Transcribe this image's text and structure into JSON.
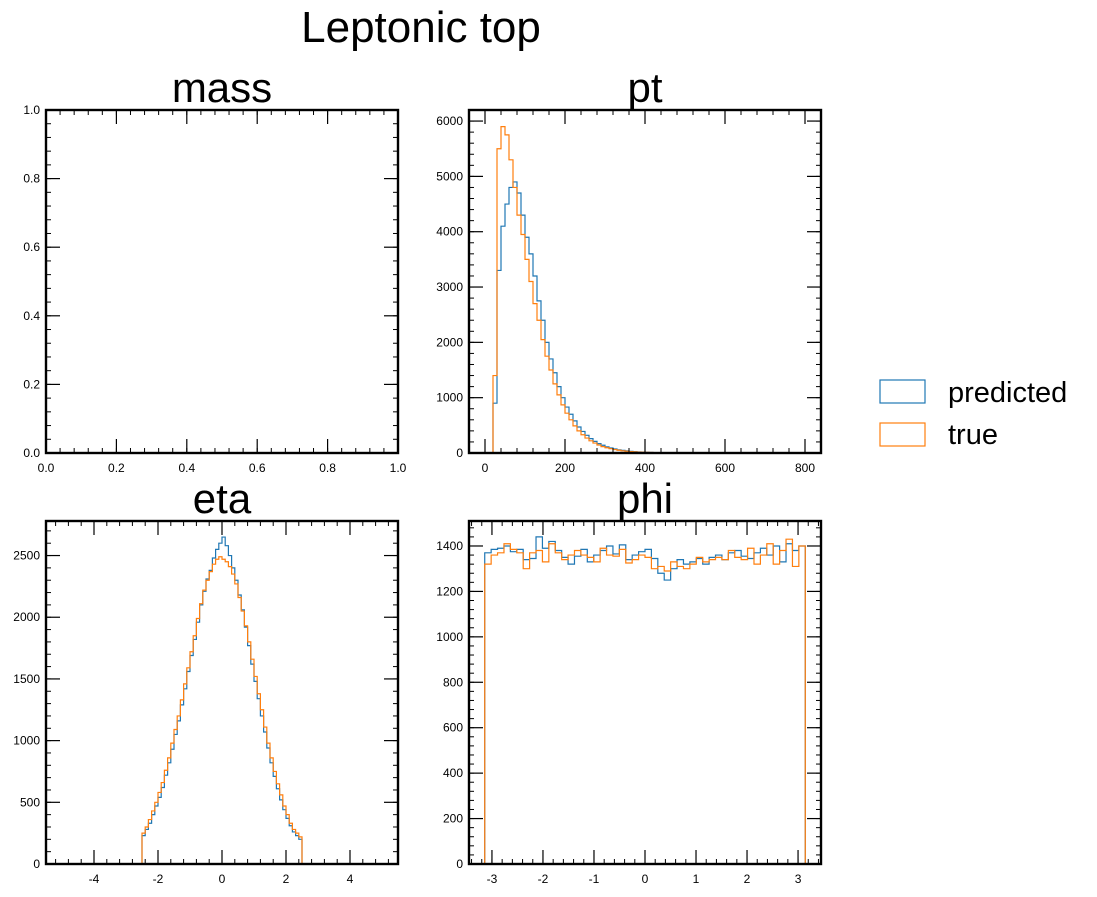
{
  "figure": {
    "title": "Leptonic top"
  },
  "legend": {
    "placement": "right",
    "entries": [
      {
        "label": "predicted",
        "color": "#1f77b4"
      },
      {
        "label": "true",
        "color": "#ff7f0e"
      }
    ]
  },
  "chart_data": [
    {
      "type": "histogram",
      "title": "mass",
      "xlabel": "",
      "ylabel": "",
      "xlim": [
        0,
        1
      ],
      "ylim": [
        0,
        1
      ],
      "xticks": [
        0,
        0.2,
        0.4,
        0.6,
        0.8,
        1
      ],
      "xtick_labels": [
        "0.0",
        "0.2",
        "0.4",
        "0.6",
        "0.8",
        "1.0"
      ],
      "yticks": [
        0,
        0.2,
        0.4,
        0.6,
        0.8,
        1
      ],
      "ytick_labels": [
        "0.0",
        "0.2",
        "0.4",
        "0.6",
        "0.8",
        "1.0"
      ],
      "bin_edges": [],
      "series": []
    },
    {
      "type": "histogram",
      "title": "pt",
      "xlabel": "",
      "ylabel": "",
      "xlim": [
        -40,
        840
      ],
      "ylim": [
        0,
        6200
      ],
      "xticks": [
        0,
        200,
        400,
        600,
        800
      ],
      "xtick_labels": [
        "0",
        "200",
        "400",
        "600",
        "800"
      ],
      "yticks": [
        0,
        1000,
        2000,
        3000,
        4000,
        5000,
        6000
      ],
      "ytick_labels": [
        "0",
        "1000",
        "2000",
        "3000",
        "4000",
        "5000",
        "6000"
      ],
      "bin_edges": [
        20,
        30,
        40,
        50,
        60,
        70,
        80,
        90,
        100,
        110,
        120,
        130,
        140,
        150,
        160,
        170,
        180,
        190,
        200,
        210,
        220,
        230,
        240,
        250,
        260,
        270,
        280,
        290,
        300,
        310,
        320,
        330,
        340,
        350,
        360,
        370,
        380,
        390,
        400,
        410,
        420,
        430,
        440,
        450,
        460,
        470,
        480,
        490,
        500,
        510,
        520
      ],
      "series": [
        {
          "name": "predicted",
          "values": [
            900,
            3300,
            4100,
            4500,
            4800,
            4900,
            4700,
            4300,
            3900,
            3600,
            3200,
            2750,
            2400,
            2000,
            1700,
            1450,
            1200,
            1000,
            830,
            700,
            580,
            470,
            390,
            320,
            260,
            210,
            170,
            140,
            110,
            90,
            72,
            58,
            47,
            38,
            30,
            24,
            19,
            15,
            12,
            10,
            8,
            7,
            6,
            5,
            4,
            3,
            3,
            2,
            2,
            1
          ]
        },
        {
          "name": "true",
          "values": [
            1400,
            5500,
            5900,
            5750,
            5300,
            4800,
            4300,
            3950,
            3500,
            3100,
            2700,
            2400,
            2050,
            1750,
            1500,
            1250,
            1050,
            870,
            720,
            600,
            490,
            400,
            330,
            270,
            220,
            180,
            145,
            115,
            95,
            78,
            62,
            50,
            40,
            32,
            26,
            21,
            17,
            13,
            11,
            9,
            7,
            6,
            5,
            4,
            3,
            3,
            2,
            2,
            1,
            1
          ]
        }
      ]
    },
    {
      "type": "histogram",
      "title": "eta",
      "xlabel": "",
      "ylabel": "",
      "xlim": [
        -5.5,
        5.5
      ],
      "ylim": [
        0,
        2780
      ],
      "xticks": [
        -4,
        -2,
        0,
        2,
        4
      ],
      "xtick_labels": [
        "-4",
        "-2",
        "0",
        "2",
        "4"
      ],
      "yticks": [
        0,
        500,
        1000,
        1500,
        2000,
        2500
      ],
      "ytick_labels": [
        "0",
        "500",
        "1000",
        "1500",
        "2000",
        "2500"
      ],
      "bin_edges": [
        -2.5,
        -2.4,
        -2.3,
        -2.2,
        -2.1,
        -2.0,
        -1.9,
        -1.8,
        -1.7,
        -1.6,
        -1.5,
        -1.4,
        -1.3,
        -1.2,
        -1.1,
        -1.0,
        -0.9,
        -0.8,
        -0.7,
        -0.6,
        -0.5,
        -0.4,
        -0.3,
        -0.2,
        -0.1,
        0.0,
        0.1,
        0.2,
        0.3,
        0.4,
        0.5,
        0.6,
        0.7,
        0.8,
        0.9,
        1.0,
        1.1,
        1.2,
        1.3,
        1.4,
        1.5,
        1.6,
        1.7,
        1.8,
        1.9,
        2.0,
        2.1,
        2.2,
        2.3,
        2.4,
        2.5
      ],
      "series": [
        {
          "name": "predicted",
          "values": [
            230,
            280,
            330,
            400,
            470,
            540,
            620,
            720,
            820,
            930,
            1050,
            1160,
            1290,
            1420,
            1560,
            1690,
            1820,
            1960,
            2100,
            2210,
            2310,
            2380,
            2480,
            2550,
            2600,
            2650,
            2580,
            2500,
            2400,
            2300,
            2180,
            2060,
            1920,
            1770,
            1620,
            1480,
            1340,
            1200,
            1070,
            940,
            820,
            710,
            610,
            520,
            440,
            370,
            310,
            260,
            230,
            200
          ]
        },
        {
          "name": "true",
          "values": [
            250,
            300,
            360,
            430,
            500,
            580,
            660,
            760,
            860,
            980,
            1090,
            1200,
            1330,
            1460,
            1590,
            1720,
            1850,
            1990,
            2110,
            2220,
            2300,
            2370,
            2430,
            2470,
            2490,
            2470,
            2450,
            2410,
            2350,
            2270,
            2160,
            2050,
            1930,
            1800,
            1660,
            1520,
            1380,
            1250,
            1110,
            980,
            860,
            750,
            650,
            560,
            470,
            400,
            330,
            280,
            250,
            220
          ]
        }
      ]
    },
    {
      "type": "histogram",
      "title": "phi",
      "xlabel": "",
      "ylabel": "",
      "xlim": [
        -3.45,
        3.45
      ],
      "ylim": [
        0,
        1510
      ],
      "xticks": [
        -3,
        -2,
        -1,
        0,
        1,
        2,
        3
      ],
      "xtick_labels": [
        "-3",
        "-2",
        "-1",
        "0",
        "1",
        "2",
        "3"
      ],
      "yticks": [
        0,
        200,
        400,
        600,
        800,
        1000,
        1200,
        1400
      ],
      "ytick_labels": [
        "0",
        "200",
        "400",
        "600",
        "800",
        "1000",
        "1200",
        "1400"
      ],
      "bin_edges": [
        -3.1416,
        -3.0159,
        -2.8903,
        -2.7646,
        -2.6389,
        -2.5133,
        -2.3876,
        -2.2619,
        -2.1363,
        -2.0106,
        -1.885,
        -1.7593,
        -1.6336,
        -1.508,
        -1.3823,
        -1.2566,
        -1.131,
        -1.0053,
        -0.8796,
        -0.754,
        -0.6283,
        -0.5027,
        -0.377,
        -0.2513,
        -0.1257,
        0.0,
        0.1257,
        0.2513,
        0.377,
        0.5027,
        0.6283,
        0.754,
        0.8796,
        1.0053,
        1.131,
        1.2566,
        1.3823,
        1.508,
        1.6336,
        1.7593,
        1.885,
        2.0106,
        2.1363,
        2.2619,
        2.3876,
        2.5133,
        2.6389,
        2.7646,
        2.8903,
        3.0159,
        3.1416
      ],
      "series": [
        {
          "name": "predicted",
          "values": [
            1370,
            1385,
            1390,
            1400,
            1375,
            1385,
            1340,
            1345,
            1440,
            1390,
            1420,
            1380,
            1350,
            1320,
            1355,
            1385,
            1330,
            1360,
            1380,
            1400,
            1365,
            1405,
            1340,
            1360,
            1375,
            1385,
            1345,
            1280,
            1250,
            1300,
            1340,
            1320,
            1330,
            1345,
            1320,
            1350,
            1360,
            1340,
            1370,
            1380,
            1355,
            1345,
            1370,
            1390,
            1360,
            1400,
            1330,
            1410,
            1380,
            1400
          ]
        },
        {
          "name": "true",
          "values": [
            1320,
            1360,
            1370,
            1410,
            1385,
            1370,
            1300,
            1370,
            1380,
            1330,
            1410,
            1370,
            1340,
            1360,
            1380,
            1360,
            1350,
            1330,
            1390,
            1360,
            1355,
            1385,
            1325,
            1340,
            1360,
            1350,
            1300,
            1310,
            1290,
            1330,
            1310,
            1300,
            1320,
            1350,
            1330,
            1340,
            1350,
            1340,
            1380,
            1350,
            1340,
            1390,
            1320,
            1360,
            1410,
            1320,
            1380,
            1430,
            1310,
            1400
          ]
        }
      ]
    }
  ]
}
